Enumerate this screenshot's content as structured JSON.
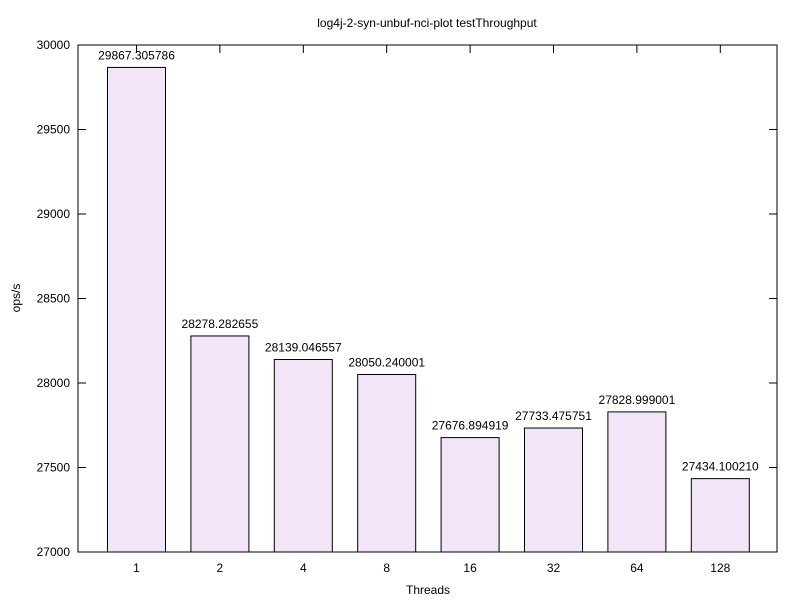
{
  "chart_data": {
    "type": "bar",
    "title": "log4j-2-syn-unbuf-nci-plot testThroughput",
    "xlabel": "Threads",
    "ylabel": "ops/s",
    "categories": [
      "1",
      "2",
      "4",
      "8",
      "16",
      "32",
      "64",
      "128"
    ],
    "values": [
      29867.305786,
      28278.282655,
      28139.046557,
      28050.240001,
      27676.894919,
      27733.475751,
      27828.999001,
      27434.10021
    ],
    "value_labels": [
      "29867.305786",
      "28278.282655",
      "28139.046557",
      "28050.240001",
      "27676.894919",
      "27733.475751",
      "27828.999001",
      "27434.100210"
    ],
    "ylim": [
      27000,
      30000
    ],
    "yticks": [
      27000,
      27500,
      28000,
      28500,
      29000,
      29500,
      30000
    ],
    "grid": false,
    "legend": "none",
    "bar_color": "#f3e5f8",
    "bar_edge_color": "#000000"
  }
}
